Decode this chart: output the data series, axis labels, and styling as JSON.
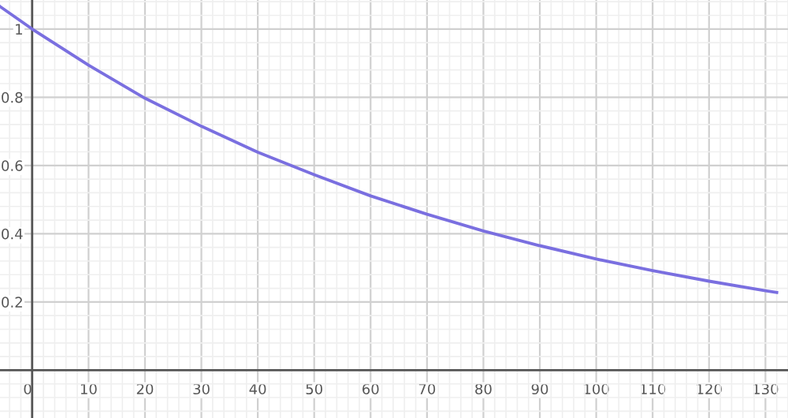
{
  "chart_data": {
    "type": "line",
    "x": [
      -5.7,
      0,
      10,
      20,
      30,
      40,
      50,
      60,
      70,
      80,
      90,
      100,
      110,
      120,
      130,
      132
    ],
    "series": [
      {
        "color": "#7a6fe0",
        "values": [
          1.066,
          1.0,
          0.894,
          0.797,
          0.715,
          0.639,
          0.573,
          0.511,
          0.457,
          0.408,
          0.365,
          0.326,
          0.292,
          0.261,
          0.233,
          0.228
        ]
      }
    ],
    "xlim": [
      -5.7,
      134
    ],
    "ylim": [
      -0.14,
      1.085
    ],
    "xticks": [
      0,
      10,
      20,
      30,
      40,
      50,
      60,
      70,
      80,
      90,
      100,
      110,
      120,
      130
    ],
    "yticks": [
      0.2,
      0.4,
      0.6,
      0.8,
      {
        "value": 1,
        "label": "1"
      }
    ],
    "grid": true,
    "marker": "none",
    "line_style": "solid"
  }
}
